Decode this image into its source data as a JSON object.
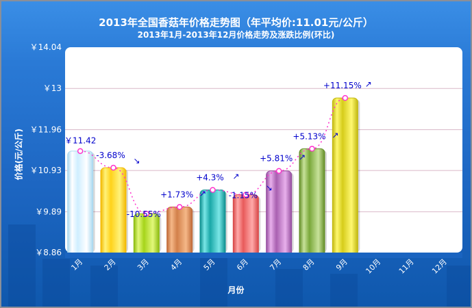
{
  "header": {
    "title": "2013年全国香菇年价格走势图（年平均价:11.01元/公斤）",
    "subtitle": "2013年1月-2013年12月价格走势及涨跌比例(环比)"
  },
  "axes": {
    "ylabel": "价格(元/公斤)",
    "xlabel": "月份"
  },
  "colors": {
    "background": "#1d66c2",
    "plot_bg": "#ffffff",
    "grid": "#d9b8c8",
    "label_text": "#0000cc",
    "trend_line": "#ff33cc"
  },
  "chart_data": {
    "type": "bar",
    "title": "2013年全国香菇年价格走势图（年平均价:11.01元/公斤）",
    "subtitle": "2013年1月-2013年12月价格走势及涨跌比例(环比)",
    "xlabel": "月份",
    "ylabel": "价格(元/公斤)",
    "ylim": [
      8.86,
      14.04
    ],
    "yticks": [
      8.86,
      9.89,
      10.93,
      11.96,
      13,
      14.04
    ],
    "ytick_labels": [
      "￥8.86",
      "￥9.89",
      "￥10.93",
      "￥11.96",
      "￥13",
      "￥14.04"
    ],
    "grid": true,
    "categories": [
      "1月",
      "2月",
      "3月",
      "4月",
      "5月",
      "6月",
      "7月",
      "8月",
      "9月",
      "10月",
      "11月",
      "12月"
    ],
    "values": [
      11.42,
      11.0,
      9.84,
      10.01,
      10.44,
      10.32,
      10.92,
      11.48,
      12.76,
      null,
      null,
      null
    ],
    "annotations": [
      "￥11.42",
      "-3.68%",
      "-10.55%",
      "+1.73%",
      "+4.3%",
      "-1.15%",
      "+5.81%",
      "+5.13%",
      "+11.15%",
      "",
      "",
      ""
    ],
    "trend_arrows": [
      "",
      "down",
      "",
      "up",
      "up",
      "down",
      "up",
      "up",
      "up",
      "",
      "",
      ""
    ],
    "bar_colors": [
      [
        "#cfeeff",
        "#ffffff",
        "#a8d8f0"
      ],
      [
        "#ffd21a",
        "#fff27a",
        "#f2b800"
      ],
      [
        "#a6d41a",
        "#e2f87a",
        "#8cbc10"
      ],
      [
        "#d2804a",
        "#f5b888",
        "#c06a38"
      ],
      [
        "#1aa8a8",
        "#7ae6e6",
        "#0e9090"
      ],
      [
        "#e85a5a",
        "#ffaaaa",
        "#d84848"
      ],
      [
        "#a860b0",
        "#e8b0ec",
        "#9650a0"
      ],
      [
        "#7aa83a",
        "#c8e29a",
        "#648e28"
      ],
      [
        "#d6cc1a",
        "#fff870",
        "#c2b810"
      ],
      [
        "#cccccc",
        "#eeeeee",
        "#bbbbbb"
      ],
      [
        "#cccccc",
        "#eeeeee",
        "#bbbbbb"
      ],
      [
        "#cccccc",
        "#eeeeee",
        "#bbbbbb"
      ]
    ],
    "series_line": "环比 trend (dotted)",
    "legend": "none"
  }
}
